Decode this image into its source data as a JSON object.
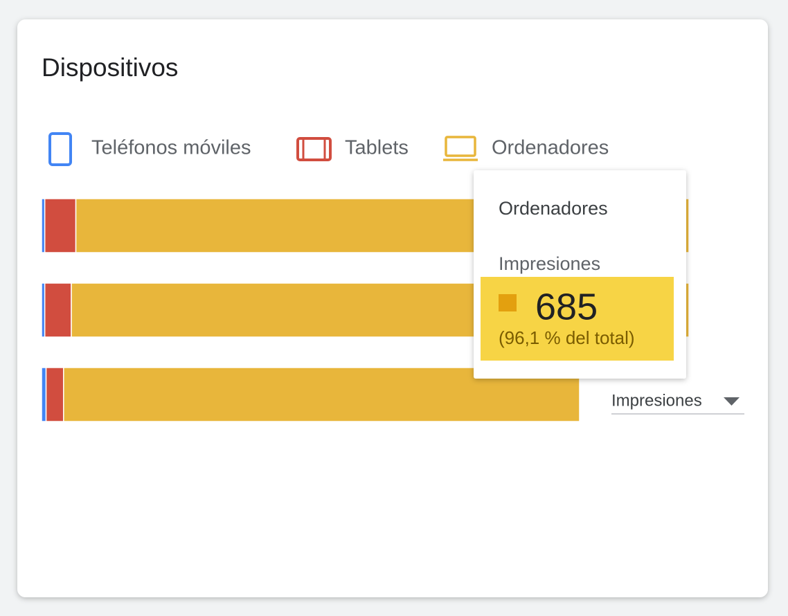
{
  "chart_data": {
    "type": "bar",
    "orientation": "horizontal",
    "stacked": true,
    "title": "Dispositivos",
    "categories": [
      null,
      null,
      null
    ],
    "xlim": [
      0,
      100
    ],
    "series": [
      {
        "name": "Teléfonos móviles",
        "color": "#4285f4",
        "values": [
          0.5,
          0.5,
          0.7
        ]
      },
      {
        "name": "Tablets",
        "color": "#d14d3f",
        "values": [
          4.8,
          4.1,
          2.7
        ]
      },
      {
        "name": "Ordenadores",
        "color": "#e8b63b",
        "values": [
          94.7,
          95.4,
          79.7
        ]
      }
    ],
    "tooltip": {
      "title": "Ordenadores",
      "metric": "Impresiones",
      "value": 685,
      "share": "(96,1 % del total)",
      "color": "#e3a00f",
      "highlight": "#f7d445"
    },
    "dropdown": "Impresiones"
  }
}
